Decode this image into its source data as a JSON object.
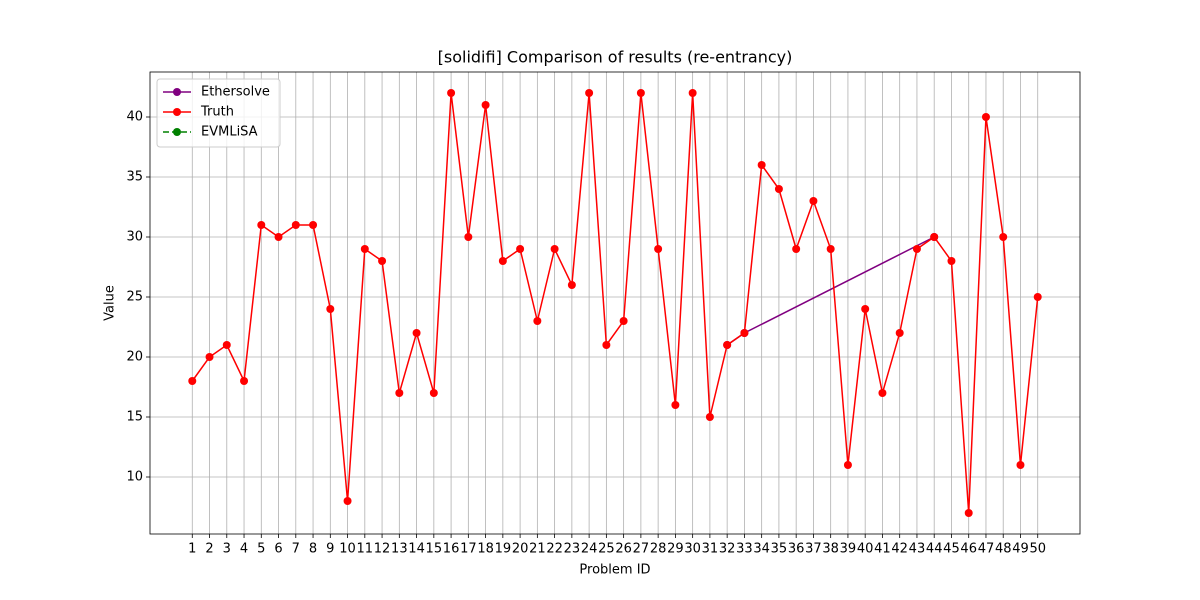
{
  "chart_data": {
    "type": "line",
    "title": "[solidifi] Comparison of results (re-entrancy)",
    "xlabel": "Problem ID",
    "ylabel": "Value",
    "series": [
      {
        "name": "Ethersolve",
        "color": "#800080",
        "linestyle": "solid",
        "x": [
          32,
          33,
          44
        ],
        "values": [
          21,
          22,
          30
        ]
      },
      {
        "name": "Truth",
        "color": "#ff0000",
        "linestyle": "solid",
        "x": [
          1,
          2,
          3,
          4,
          5,
          6,
          7,
          8,
          9,
          10,
          11,
          12,
          13,
          14,
          15,
          16,
          17,
          18,
          19,
          20,
          21,
          22,
          23,
          24,
          25,
          26,
          27,
          28,
          29,
          30,
          31,
          32,
          33,
          34,
          35,
          36,
          37,
          38,
          39,
          40,
          41,
          42,
          43,
          44,
          45,
          46,
          47,
          48,
          49,
          50
        ],
        "values": [
          18,
          20,
          21,
          18,
          31,
          30,
          31,
          31,
          24,
          8,
          29,
          28,
          17,
          22,
          17,
          42,
          30,
          41,
          28,
          29,
          23,
          29,
          26,
          42,
          21,
          23,
          42,
          29,
          16,
          42,
          15,
          21,
          22,
          36,
          34,
          29,
          33,
          29,
          11,
          24,
          17,
          22,
          29,
          30,
          28,
          7,
          40,
          30,
          11,
          25
        ]
      },
      {
        "name": "EVMLiSA",
        "color": "#008000",
        "linestyle": "dashed",
        "x": [],
        "values": []
      }
    ],
    "xlim": [
      -1.45,
      52.45
    ],
    "ylim": [
      5.25,
      43.75
    ],
    "xticks": [
      1,
      2,
      3,
      4,
      5,
      6,
      7,
      8,
      9,
      10,
      11,
      12,
      13,
      14,
      15,
      16,
      17,
      18,
      19,
      20,
      21,
      22,
      23,
      24,
      25,
      26,
      27,
      28,
      29,
      30,
      31,
      32,
      33,
      34,
      35,
      36,
      37,
      38,
      39,
      40,
      41,
      42,
      43,
      44,
      45,
      46,
      47,
      48,
      49,
      50
    ],
    "yticks": [
      10,
      15,
      20,
      25,
      30,
      35,
      40
    ],
    "grid": true,
    "legend": "upper-left"
  }
}
